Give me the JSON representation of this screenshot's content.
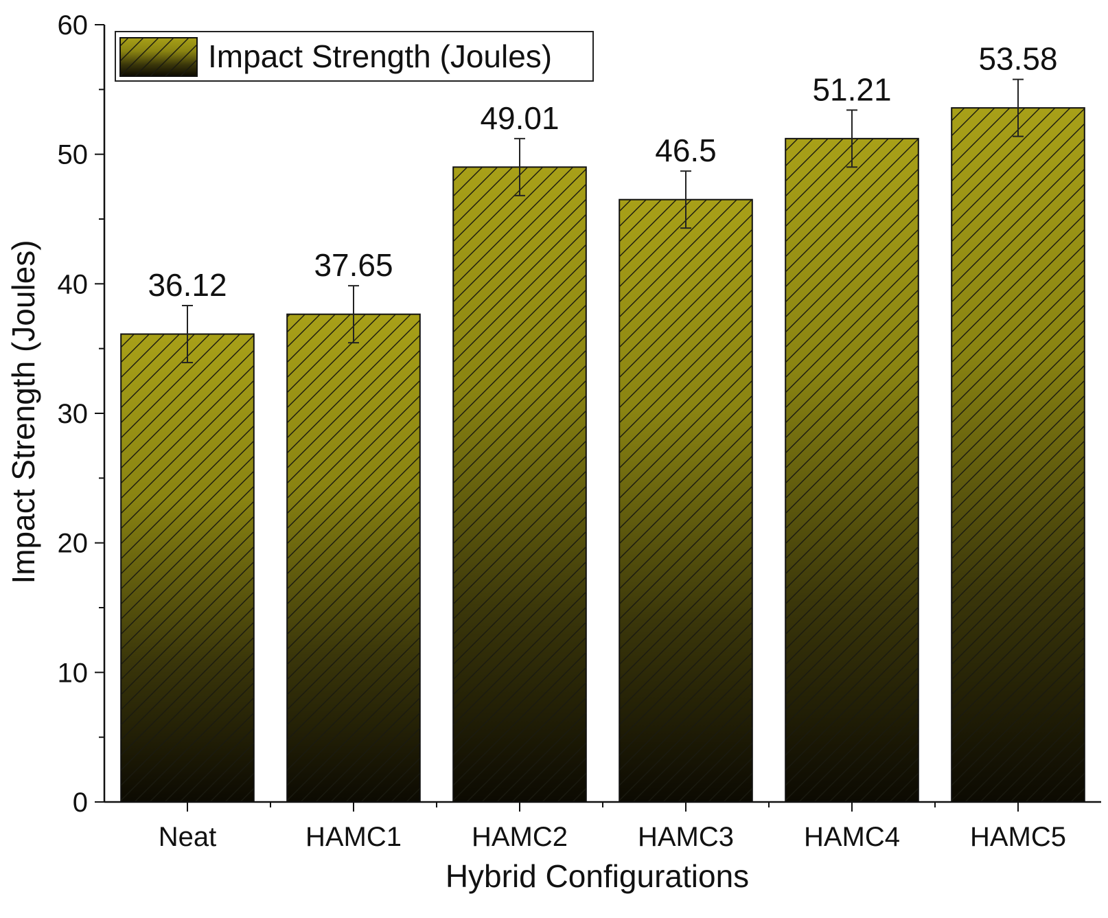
{
  "chart_data": {
    "type": "bar",
    "xlabel": "Hybrid Configurations",
    "ylabel": "Impact Strength (Joules)",
    "ylim": [
      0,
      60
    ],
    "y_major_ticks": [
      0,
      10,
      20,
      30,
      40,
      50,
      60
    ],
    "y_minor_step": 5,
    "grid": false,
    "legend": {
      "placement": "top-left",
      "label": "Impact Strength (Joules)"
    },
    "categories": [
      "Neat",
      "HAMC1",
      "HAMC2",
      "HAMC3",
      "HAMC4",
      "HAMC5"
    ],
    "series": [
      {
        "name": "Impact Strength (Joules)",
        "values": [
          36.12,
          37.65,
          49.01,
          46.5,
          51.21,
          53.58
        ],
        "error": [
          2.2,
          2.2,
          2.2,
          2.2,
          2.2,
          2.2
        ]
      }
    ],
    "data_labels": [
      "36.12",
      "37.65",
      "49.01",
      "46.5",
      "51.21",
      "53.58"
    ],
    "fill": {
      "top_color": "#a8a018",
      "bottom_color": "#0c0a02",
      "pattern": "diagonal-hatch"
    }
  }
}
